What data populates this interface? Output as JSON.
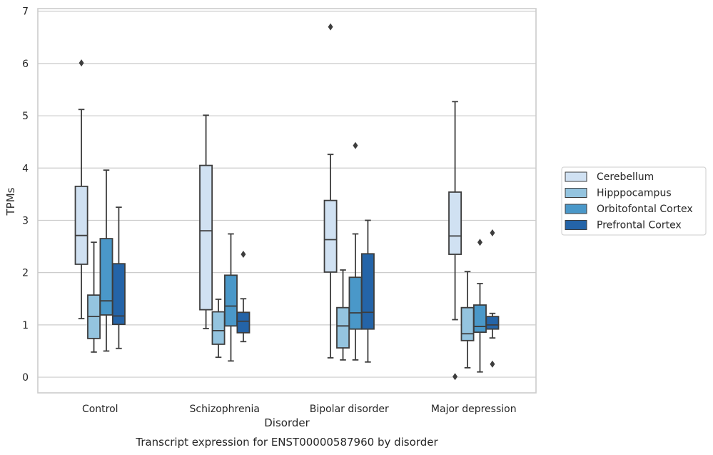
{
  "chart_data": {
    "type": "box",
    "xlabel": "Disorder",
    "ylabel": "TPMs",
    "caption": "Transcript expression for ENST00000587960 by disorder",
    "ylim": [
      -0.3,
      7.05
    ],
    "yticks": [
      "0",
      "1",
      "2",
      "3",
      "4",
      "5",
      "6",
      "7"
    ],
    "grid": "horizontal",
    "legend_position": "right",
    "categories": [
      "Control",
      "Schizophrenia",
      "Bipolar disorder",
      "Major depression"
    ],
    "series": [
      {
        "name": "Cerebellum",
        "color": "#d0e1f2",
        "boxes": [
          {
            "whislo": 1.12,
            "q1": 2.16,
            "med": 2.71,
            "q3": 3.65,
            "whishi": 5.12,
            "fliers": [
              6.01
            ]
          },
          {
            "whislo": 0.93,
            "q1": 1.29,
            "med": 2.8,
            "q3": 4.05,
            "whishi": 5.01,
            "fliers": []
          },
          {
            "whislo": 0.37,
            "q1": 2.01,
            "med": 2.63,
            "q3": 3.38,
            "whishi": 4.26,
            "fliers": [
              6.7
            ]
          },
          {
            "whislo": 1.1,
            "q1": 2.35,
            "med": 2.7,
            "q3": 3.54,
            "whishi": 5.27,
            "fliers": [
              0.01
            ]
          }
        ]
      },
      {
        "name": "Hipppocampus",
        "color": "#94c4df",
        "boxes": [
          {
            "whislo": 0.48,
            "q1": 0.74,
            "med": 1.16,
            "q3": 1.57,
            "whishi": 2.58,
            "fliers": []
          },
          {
            "whislo": 0.38,
            "q1": 0.63,
            "med": 0.89,
            "q3": 1.25,
            "whishi": 1.49,
            "fliers": []
          },
          {
            "whislo": 0.33,
            "q1": 0.56,
            "med": 0.98,
            "q3": 1.33,
            "whishi": 2.05,
            "fliers": []
          },
          {
            "whislo": 0.18,
            "q1": 0.7,
            "med": 0.83,
            "q3": 1.33,
            "whishi": 2.02,
            "fliers": []
          }
        ]
      },
      {
        "name": "Orbitofontal Cortex",
        "color": "#4a98c9",
        "boxes": [
          {
            "whislo": 0.5,
            "q1": 1.19,
            "med": 1.46,
            "q3": 2.65,
            "whishi": 3.96,
            "fliers": []
          },
          {
            "whislo": 0.31,
            "q1": 0.98,
            "med": 1.36,
            "q3": 1.95,
            "whishi": 2.74,
            "fliers": []
          },
          {
            "whislo": 0.33,
            "q1": 0.92,
            "med": 1.23,
            "q3": 1.91,
            "whishi": 2.74,
            "fliers": [
              4.43
            ]
          },
          {
            "whislo": 0.1,
            "q1": 0.86,
            "med": 0.97,
            "q3": 1.38,
            "whishi": 1.79,
            "fliers": [
              2.58
            ]
          }
        ]
      },
      {
        "name": "Prefrontal Cortex",
        "color": "#2464a8",
        "boxes": [
          {
            "whislo": 0.55,
            "q1": 1.01,
            "med": 1.17,
            "q3": 2.17,
            "whishi": 3.25,
            "fliers": []
          },
          {
            "whislo": 0.68,
            "q1": 0.85,
            "med": 1.07,
            "q3": 1.24,
            "whishi": 1.5,
            "fliers": [
              2.35
            ]
          },
          {
            "whislo": 0.29,
            "q1": 0.92,
            "med": 1.24,
            "q3": 2.36,
            "whishi": 3.0,
            "fliers": []
          },
          {
            "whislo": 0.75,
            "q1": 0.92,
            "med": 1.0,
            "q3": 1.16,
            "whishi": 1.22,
            "fliers": [
              0.25,
              2.76
            ]
          }
        ]
      }
    ]
  }
}
